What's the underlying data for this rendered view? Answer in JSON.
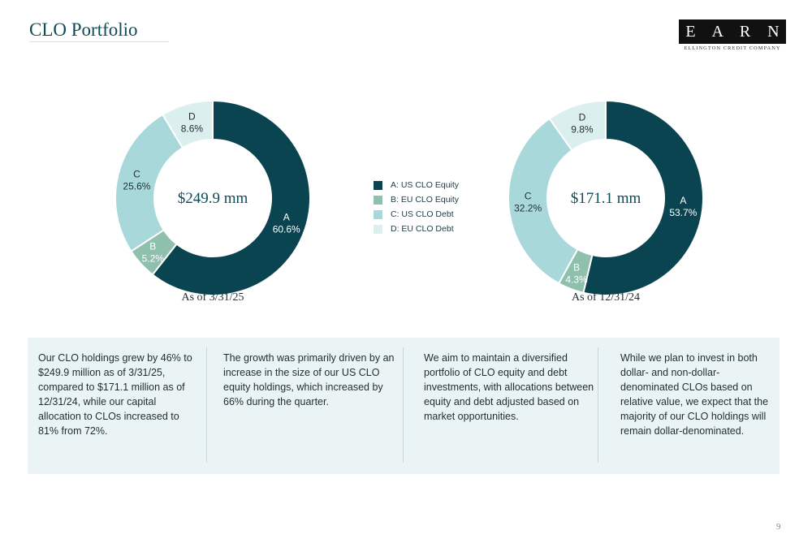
{
  "header": {
    "title": "CLO Portfolio"
  },
  "logo": {
    "text": "E A R N",
    "subtext": "ELLINGTON CREDIT COMPANY"
  },
  "legend": {
    "items": [
      {
        "label": "A: US CLO Equity",
        "color": "#0b4451"
      },
      {
        "label": "B: EU CLO Equity",
        "color": "#8fbfad"
      },
      {
        "label": "C: US CLO Debt",
        "color": "#a9d8db"
      },
      {
        "label": "D: EU CLO Debt",
        "color": "#dcefef"
      }
    ]
  },
  "chart_data": [
    {
      "type": "pie",
      "center_label": "$249.9 mm",
      "caption": "As of 3/31/25",
      "categories": [
        "A",
        "B",
        "C",
        "D"
      ],
      "values": [
        60.6,
        5.2,
        25.6,
        8.6
      ],
      "value_labels": [
        "60.6%",
        "5.2%",
        "25.6%",
        "8.6%"
      ]
    },
    {
      "type": "pie",
      "center_label": "$171.1 mm",
      "caption": "As of 12/31/24",
      "categories": [
        "A",
        "B",
        "C",
        "D"
      ],
      "values": [
        53.7,
        4.3,
        32.2,
        9.8
      ],
      "value_labels": [
        "53.7%",
        "4.3%",
        "32.2%",
        "9.8%"
      ]
    }
  ],
  "panel": {
    "columns": [
      "Our CLO holdings grew by 46% to $249.9 million as of 3/31/25, compared to $171.1 million as of 12/31/24, while our capital allocation to CLOs increased to 81% from 72%.",
      "The growth was primarily driven by an increase in the size of our US CLO equity holdings, which increased by 66% during the quarter.",
      "We aim to maintain a diversified portfolio of CLO equity and debt investments, with allocations between equity and debt adjusted based on market opportunities.",
      "While we plan to invest in both dollar- and non-dollar-denominated CLOs based on relative value, we expect that the majority of our CLO holdings will remain dollar-denominated."
    ]
  },
  "footer": {
    "page_number": "9"
  }
}
